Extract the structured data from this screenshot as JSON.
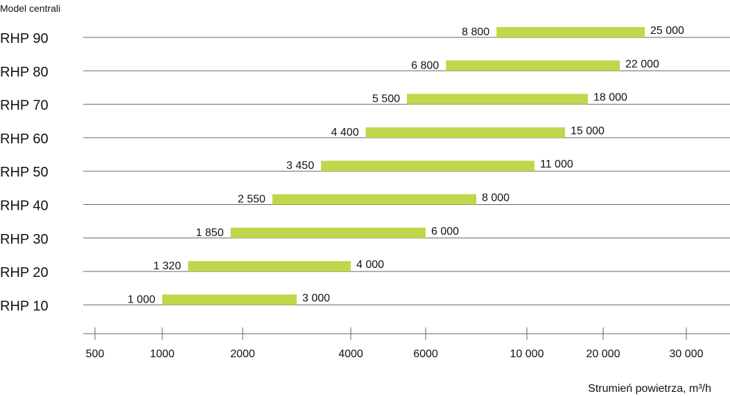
{
  "chart_data": {
    "type": "bar",
    "orientation": "horizontal-range",
    "ylabel": "Model centrali",
    "xlabel": "Strumień powietrza, m³/h",
    "bar_color": "#c2d64a",
    "grid_color": "#666666",
    "categories": [
      "RHP 90",
      "RHP 80",
      "RHP 70",
      "RHP 60",
      "RHP 50",
      "RHP 40",
      "RHP 30",
      "RHP 20",
      "RHP 10"
    ],
    "ranges": [
      {
        "min": 8800,
        "max": 25000,
        "min_label": "8 800",
        "max_label": "25 000"
      },
      {
        "min": 6800,
        "max": 22000,
        "min_label": "6 800",
        "max_label": "22 000"
      },
      {
        "min": 5500,
        "max": 18000,
        "min_label": "5 500",
        "max_label": "18 000"
      },
      {
        "min": 4400,
        "max": 15000,
        "min_label": "4 400",
        "max_label": "15 000"
      },
      {
        "min": 3450,
        "max": 11000,
        "min_label": "3 450",
        "max_label": "11 000"
      },
      {
        "min": 2550,
        "max": 8000,
        "min_label": "2 550",
        "max_label": "8 000"
      },
      {
        "min": 1850,
        "max": 6000,
        "min_label": "1 850",
        "max_label": "6 000"
      },
      {
        "min": 1320,
        "max": 4000,
        "min_label": "1 320",
        "max_label": "4 000"
      },
      {
        "min": 1000,
        "max": 3000,
        "min_label": "1 000",
        "max_label": "3 000"
      }
    ],
    "x_ticks": [
      {
        "value": 500,
        "label": "500"
      },
      {
        "value": 1000,
        "label": "1000"
      },
      {
        "value": 2000,
        "label": "2000"
      },
      {
        "value": 4000,
        "label": "4000"
      },
      {
        "value": 6000,
        "label": "6000"
      },
      {
        "value": 10000,
        "label": "10 000"
      },
      {
        "value": 20000,
        "label": "20 000"
      },
      {
        "value": 30000,
        "label": "30 000"
      }
    ]
  }
}
